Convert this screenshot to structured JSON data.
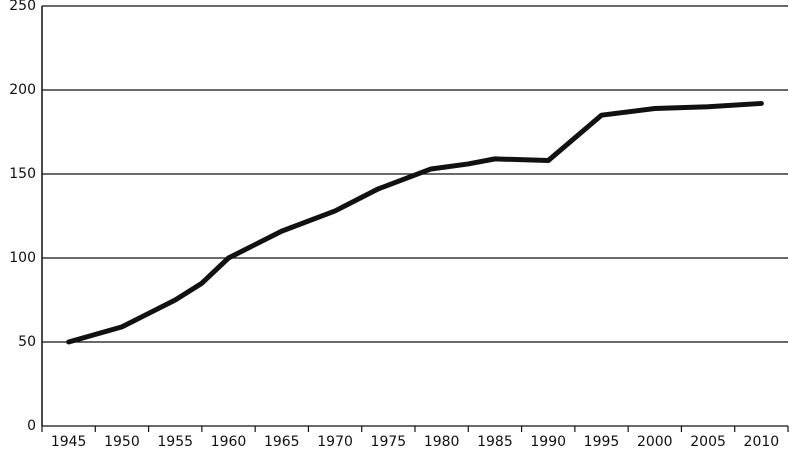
{
  "chart_data": {
    "type": "line",
    "x": [
      1945,
      1950,
      1952.5,
      1955,
      1957.5,
      1960,
      1965,
      1970,
      1974,
      1979,
      1982.5,
      1985,
      1990,
      1995,
      2000,
      2005,
      2010
    ],
    "series": [
      {
        "color": "#111111",
        "values": [
          50,
          59,
          67,
          75,
          85,
          100,
          116,
          128,
          141,
          153,
          156,
          159,
          158,
          185,
          189,
          190,
          192
        ]
      }
    ],
    "xlim": [
      1942.5,
      2012.5
    ],
    "xticks": [
      1945,
      1950,
      1955,
      1960,
      1965,
      1970,
      1975,
      1980,
      1985,
      1990,
      1995,
      2000,
      2005,
      2010
    ],
    "ylim": [
      0,
      250
    ],
    "yticks": [
      0,
      50,
      100,
      150,
      200,
      250
    ],
    "grid": true
  }
}
